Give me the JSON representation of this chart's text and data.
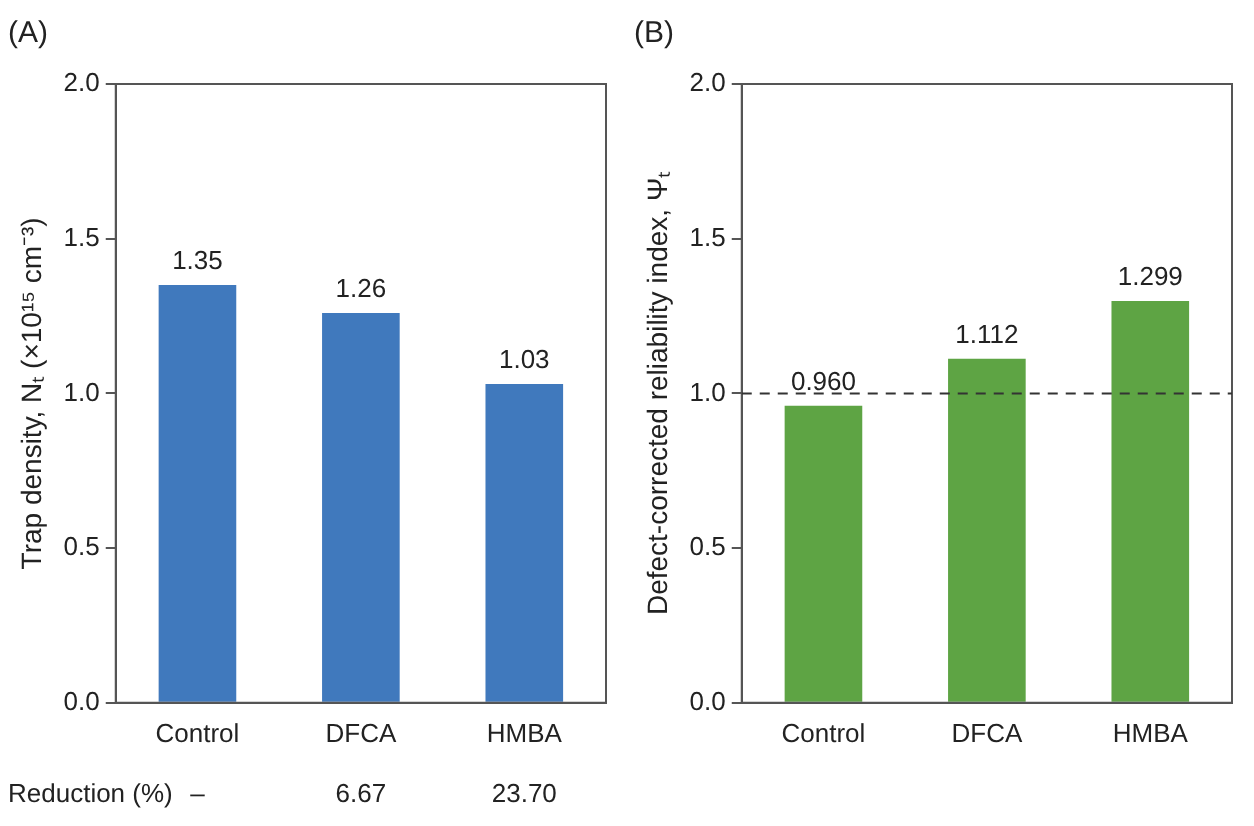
{
  "chart_data": [
    {
      "type": "bar",
      "title": "(A)",
      "ylabel": "Trap density, Nₜ (×10¹⁵ cm⁻³)",
      "categories": [
        "Control",
        "DFCA",
        "HMBA"
      ],
      "values": [
        1.35,
        1.26,
        1.03
      ],
      "color": "#4079bd",
      "ylim": [
        0,
        2
      ],
      "yticks": [
        {
          "value": 0,
          "label": "0.0"
        },
        {
          "value": 0.5,
          "label": "0.5"
        },
        {
          "value": 1,
          "label": "1.0"
        },
        {
          "value": 1.5,
          "label": "1.5"
        },
        {
          "value": 2,
          "label": "2.0"
        }
      ],
      "grid": false,
      "legend": false,
      "data_labels": true,
      "annotations": [
        "Reduction (%)",
        "–",
        "6.67",
        "23.70"
      ]
    },
    {
      "type": "bar",
      "title": "(B)",
      "ylabel": "Defect-corrected reliability index, Ψₜ",
      "categories": [
        "Control",
        "DFCA",
        "HMBA"
      ],
      "values": [
        0.96,
        1.112,
        1.299
      ],
      "value_labels": [
        "0.960",
        "1.112",
        "1.299"
      ],
      "color": "#5ea444",
      "ylim": [
        0,
        2
      ],
      "yticks": [
        {
          "value": 0,
          "label": "0.0"
        },
        {
          "value": 0.5,
          "label": "0.5"
        },
        {
          "value": 1,
          "label": "1.0"
        },
        {
          "value": 1.5,
          "label": "1.5"
        },
        {
          "value": 2,
          "label": "2.0"
        }
      ],
      "grid": false,
      "legend": false,
      "ref_lines": [
        {
          "axis": "y",
          "value": 1,
          "color": "#333333",
          "line_style": "dashed"
        }
      ]
    }
  ]
}
